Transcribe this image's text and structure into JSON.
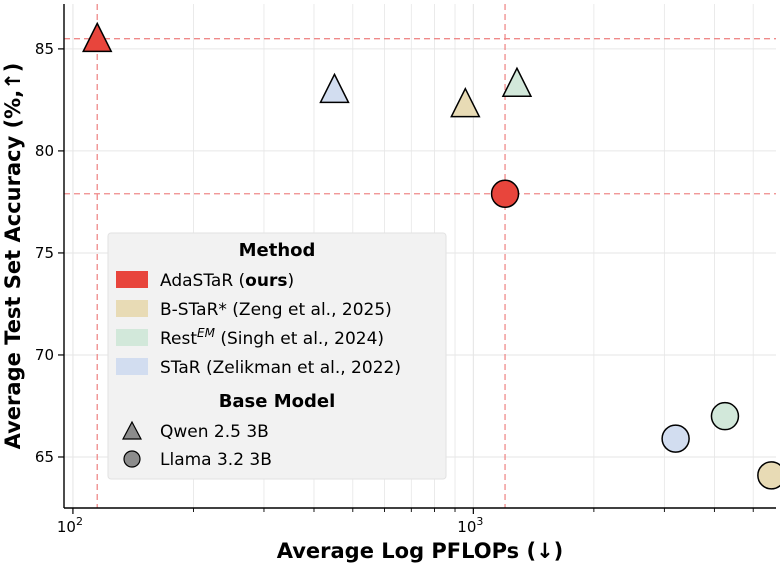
{
  "chart_data": {
    "type": "scatter",
    "xlabel": "Average Log PFLOPs (↓)",
    "ylabel": "Average Test Set Accuracy (%,↑)",
    "xscale": "log",
    "xlim": [
      95,
      5700
    ],
    "ylim": [
      62.5,
      87.2
    ],
    "x_ticks": [
      {
        "value": 100,
        "base": "10",
        "exp": "2"
      },
      {
        "value": 1000,
        "base": "10",
        "exp": "3"
      }
    ],
    "y_ticks": [
      65,
      70,
      75,
      80,
      85
    ],
    "grid": true,
    "reference_lines": {
      "x": [
        115,
        1200
      ],
      "y": [
        85.5,
        77.9
      ]
    },
    "legend": {
      "placement": "lower-left",
      "method_title": "Method",
      "method_entries": [
        {
          "key": "adastar",
          "text": "AdaSTaR (",
          "bold": "ours",
          "after": ")"
        },
        {
          "key": "bstar",
          "text": "B-STaR* (Zeng et al., 2025)",
          "bold": "",
          "after": ""
        },
        {
          "key": "rest",
          "text": "Rest",
          "sup": "EM",
          "after": " (Singh et al., 2024)"
        },
        {
          "key": "star",
          "text": "STaR (Zelikman et al., 2022)",
          "bold": "",
          "after": ""
        }
      ],
      "base_title": "Base Model",
      "base_entries": [
        {
          "marker": "triangle",
          "text": "Qwen 2.5 3B"
        },
        {
          "marker": "circle",
          "text": "Llama 3.2 3B"
        }
      ]
    },
    "colors": {
      "adastar": "#e8453c",
      "bstar": "#e8dbb5",
      "rest": "#d2e8da",
      "star": "#d2ddf0",
      "reference": "#ef8a8a",
      "grid": "#e6e6e6",
      "legend_bg": "#f2f2f2",
      "legend_marker": "#8c8c8c"
    },
    "points": [
      {
        "method": "adastar",
        "model": "triangle",
        "x": 115,
        "y": 85.4
      },
      {
        "method": "star",
        "model": "triangle",
        "x": 450,
        "y": 82.9
      },
      {
        "method": "bstar",
        "model": "triangle",
        "x": 955,
        "y": 82.2
      },
      {
        "method": "rest",
        "model": "triangle",
        "x": 1285,
        "y": 83.2
      },
      {
        "method": "adastar",
        "model": "circle",
        "x": 1200,
        "y": 77.9
      },
      {
        "method": "star",
        "model": "circle",
        "x": 3200,
        "y": 65.9
      },
      {
        "method": "rest",
        "model": "circle",
        "x": 4250,
        "y": 67.0
      },
      {
        "method": "bstar",
        "model": "circle",
        "x": 5550,
        "y": 64.1
      }
    ]
  }
}
